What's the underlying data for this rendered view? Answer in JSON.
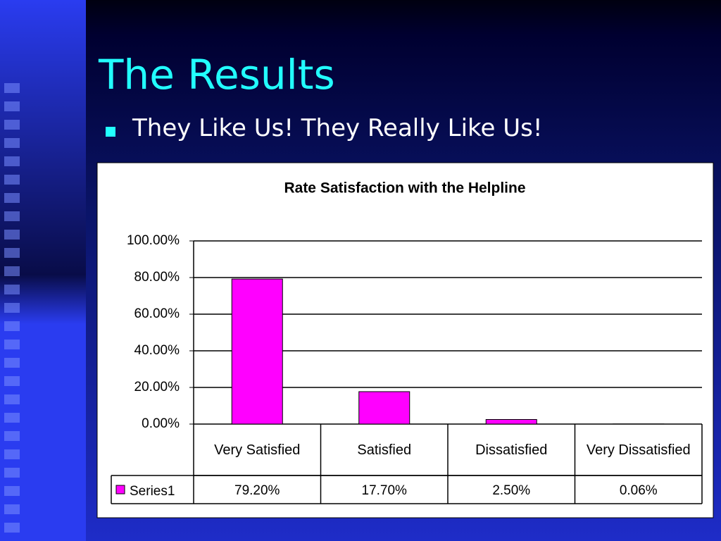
{
  "slide": {
    "title": "The Results",
    "bullet": "They Like Us! They Really Like Us!"
  },
  "chart_data": {
    "type": "bar",
    "title": "Rate Satisfaction with the Helpline",
    "categories": [
      "Very Satisfied",
      "Satisfied",
      "Dissatisfied",
      "Very Dissatisfied"
    ],
    "series": [
      {
        "name": "Series1",
        "color": "#ff00ff",
        "values": [
          79.2,
          17.7,
          2.5,
          0.06
        ],
        "value_labels": [
          "79.20%",
          "17.70%",
          "2.50%",
          "0.06%"
        ]
      }
    ],
    "ylim": [
      0,
      100
    ],
    "yticks": [
      {
        "value": 0,
        "label": "0.00%"
      },
      {
        "value": 20,
        "label": "20.00%"
      },
      {
        "value": 40,
        "label": "40.00%"
      },
      {
        "value": 60,
        "label": "60.00%"
      },
      {
        "value": 80,
        "label": "80.00%"
      },
      {
        "value": 100,
        "label": "100.00%"
      }
    ],
    "grid": true
  }
}
